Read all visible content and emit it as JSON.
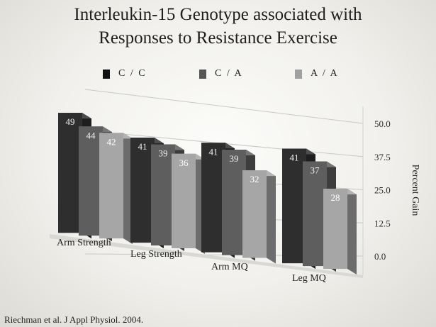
{
  "chart_data": {
    "type": "bar",
    "title_line1": "Interleukin-15 Genotype associated with",
    "title_line2": "Responses to Resistance Exercise",
    "categories": [
      "Arm Strength",
      "Leg Strength",
      "Arm MQ",
      "Leg MQ"
    ],
    "series": [
      {
        "name": "C/C",
        "values": [
          49,
          41,
          41,
          41
        ],
        "color": "#2e2e2e"
      },
      {
        "name": "C/A",
        "values": [
          44,
          39,
          39,
          37
        ],
        "color": "#5e5e5e"
      },
      {
        "name": "A/A",
        "values": [
          42,
          36,
          32,
          28
        ],
        "color": "#a6a6a6"
      }
    ],
    "ylabel": "Percent Gain",
    "yticks": [
      "50.0",
      "37.5",
      "25.0",
      "12.5",
      "0.0"
    ],
    "ylim": [
      0,
      50
    ],
    "legend_placement": "top",
    "grid": true
  },
  "source": "Riechman et al. J Appl Physiol. 2004."
}
